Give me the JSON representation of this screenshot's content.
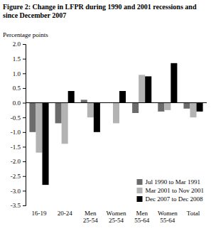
{
  "chart_data": {
    "type": "bar",
    "title": "Figure 2: Change in LFPR during 1990 and 2001 recessions and since December 2007",
    "y_label": "Percentage points",
    "categories": [
      "16-19",
      "20-24",
      "Men 25-54",
      "Women 25-54",
      "Men 55-64",
      "Women 55-64",
      "Total"
    ],
    "series": [
      {
        "name": "Jul 1990 to Mar 1991",
        "color": "#6b6b6b",
        "values": [
          -1.0,
          -0.7,
          0.1,
          0.0,
          -0.35,
          -0.3,
          -0.2
        ]
      },
      {
        "name": "Mar 2001 to Nov 2001",
        "color": "#b3b3b3",
        "values": [
          -1.7,
          -1.4,
          -0.5,
          -0.7,
          0.95,
          -0.25,
          -0.5
        ]
      },
      {
        "name": "Dec 2007 to Dec 2008",
        "color": "#000000",
        "values": [
          -2.8,
          0.4,
          -1.0,
          0.4,
          0.9,
          1.35,
          -0.3
        ]
      }
    ],
    "ylim": [
      -3.5,
      2.0
    ],
    "yticks": [
      {
        "value": -3.5,
        "label": "-3.5"
      },
      {
        "value": -3,
        "label": "-3.0"
      },
      -2.5,
      {
        "value": -2,
        "label": "-2.0"
      },
      -1.5,
      {
        "value": -1,
        "label": "-1.0"
      },
      -0.5,
      {
        "value": 0,
        "label": "0.0"
      },
      0.5,
      {
        "value": 1,
        "label": "1.0"
      },
      1.5,
      {
        "value": 2,
        "label": "2.0"
      }
    ],
    "grid": false,
    "legend": "lower right"
  }
}
